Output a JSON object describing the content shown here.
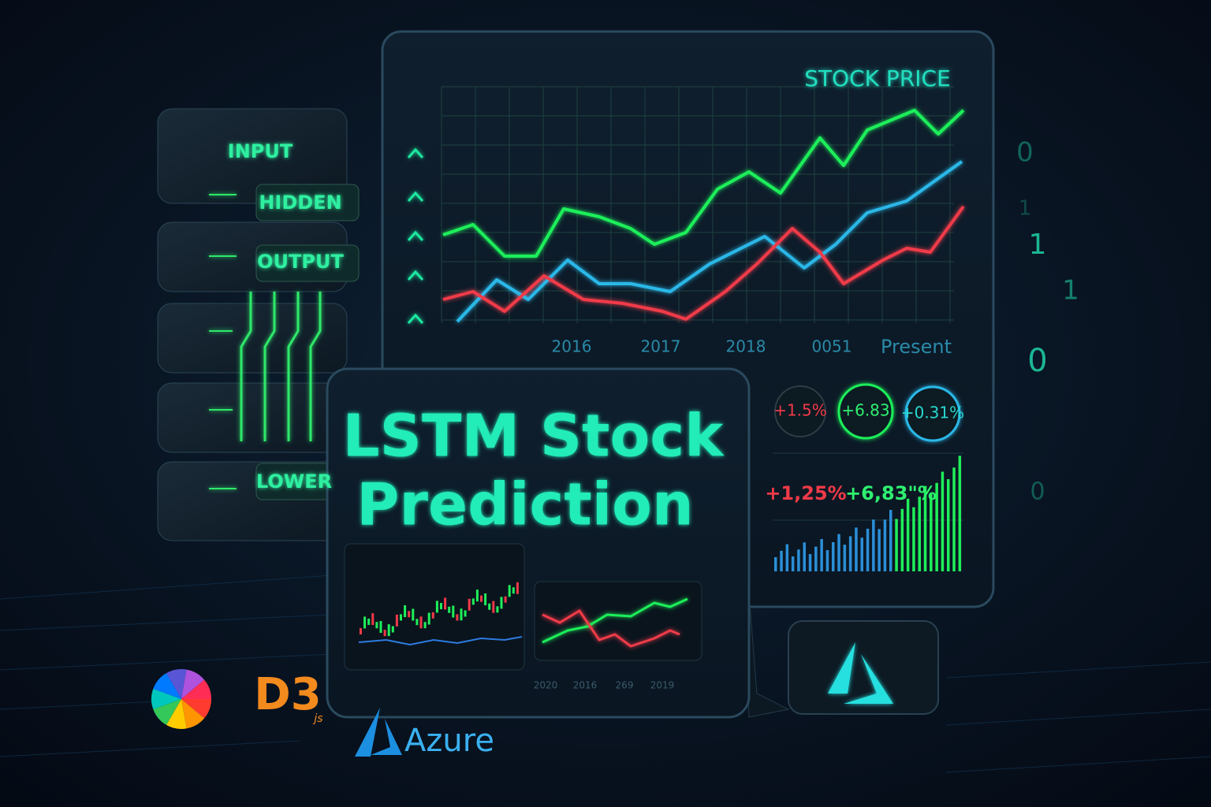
{
  "network_panel": {
    "layers": [
      "INPUT",
      "HIDDEN",
      "OUTPUT",
      "LOWER"
    ]
  },
  "stock_panel": {
    "title": "STOCK PRICE",
    "x_labels": [
      "2016",
      "2017",
      "2018",
      "0051",
      "Present"
    ],
    "badges": [
      "+1.5%",
      "+6.83",
      "+0.31%"
    ],
    "changes": [
      "+1,25%",
      "+6,83\"%"
    ]
  },
  "hero": {
    "title_lines": [
      "LSTM Stock",
      "Prediction"
    ],
    "mini_chart_labels": [
      "2020",
      "2016",
      "269",
      "2019"
    ]
  },
  "logos": {
    "d3": "D3",
    "d3_suffix": "js",
    "azure": "Azure"
  },
  "binary": [
    "0",
    "1",
    "1",
    "0",
    "0",
    "1"
  ]
}
